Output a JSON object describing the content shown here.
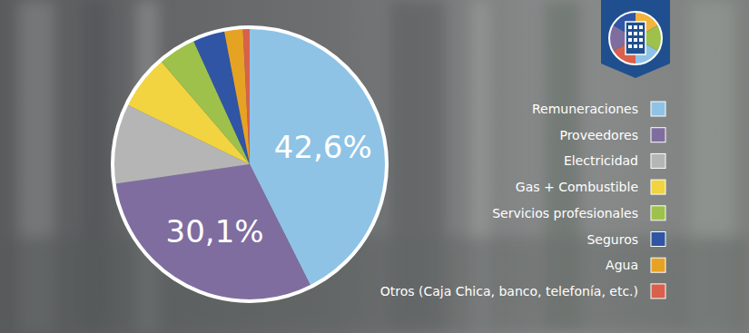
{
  "chart_data": {
    "type": "pie",
    "categories": [
      "Remuneraciones",
      "Proveedores",
      "Electricidad",
      "Gas + Combustible",
      "Servicios profesionales",
      "Seguros",
      "Agua",
      "Otros (Caja Chica, banco, telefonía, etc.)"
    ],
    "values": [
      42.6,
      30.1,
      9.5,
      6.5,
      4.5,
      3.8,
      2.2,
      0.8
    ],
    "value_labels": [
      "42,6%",
      "30,1%",
      null,
      null,
      null,
      null,
      null,
      null
    ],
    "colors": [
      "#8ec3e6",
      "#7f6da0",
      "#b5b5b5",
      "#f2d340",
      "#9dc14b",
      "#2f55a4",
      "#e6a323",
      "#d9604a"
    ],
    "data_labels": true,
    "legend": "right"
  }
}
